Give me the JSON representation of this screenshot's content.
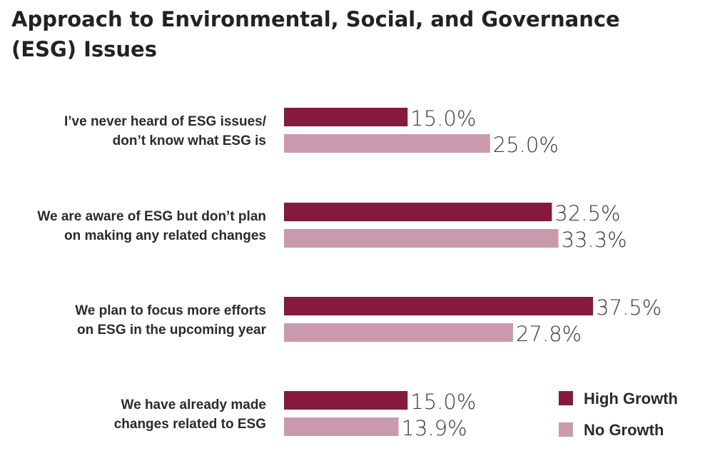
{
  "chart_data": {
    "type": "bar",
    "orientation": "horizontal",
    "title": "Approach to Environmental, Social, and Governance (ESG) Issues",
    "categories": [
      [
        "I’ve never heard of ESG issues/",
        "don’t know what ESG is"
      ],
      [
        "We are aware of ESG but don’t plan",
        "on making any related changes"
      ],
      [
        "We plan to focus more efforts",
        "on ESG in the upcoming year"
      ],
      [
        "We have already made",
        "changes related to ESG"
      ]
    ],
    "series": [
      {
        "name": "High Growth",
        "color": "#851a3d",
        "values": [
          15.0,
          32.5,
          37.5,
          15.0
        ],
        "labels": [
          "15.0%",
          "32.5%",
          "37.5%",
          "15.0%"
        ]
      },
      {
        "name": "No Growth",
        "color": "#c99aae",
        "values": [
          25.0,
          33.3,
          27.8,
          13.9
        ],
        "labels": [
          "25.0%",
          "33.3%",
          "27.8%",
          "13.9%"
        ]
      }
    ],
    "xlim": [
      0,
      40
    ],
    "grid": false,
    "legend": "bottom-right"
  }
}
